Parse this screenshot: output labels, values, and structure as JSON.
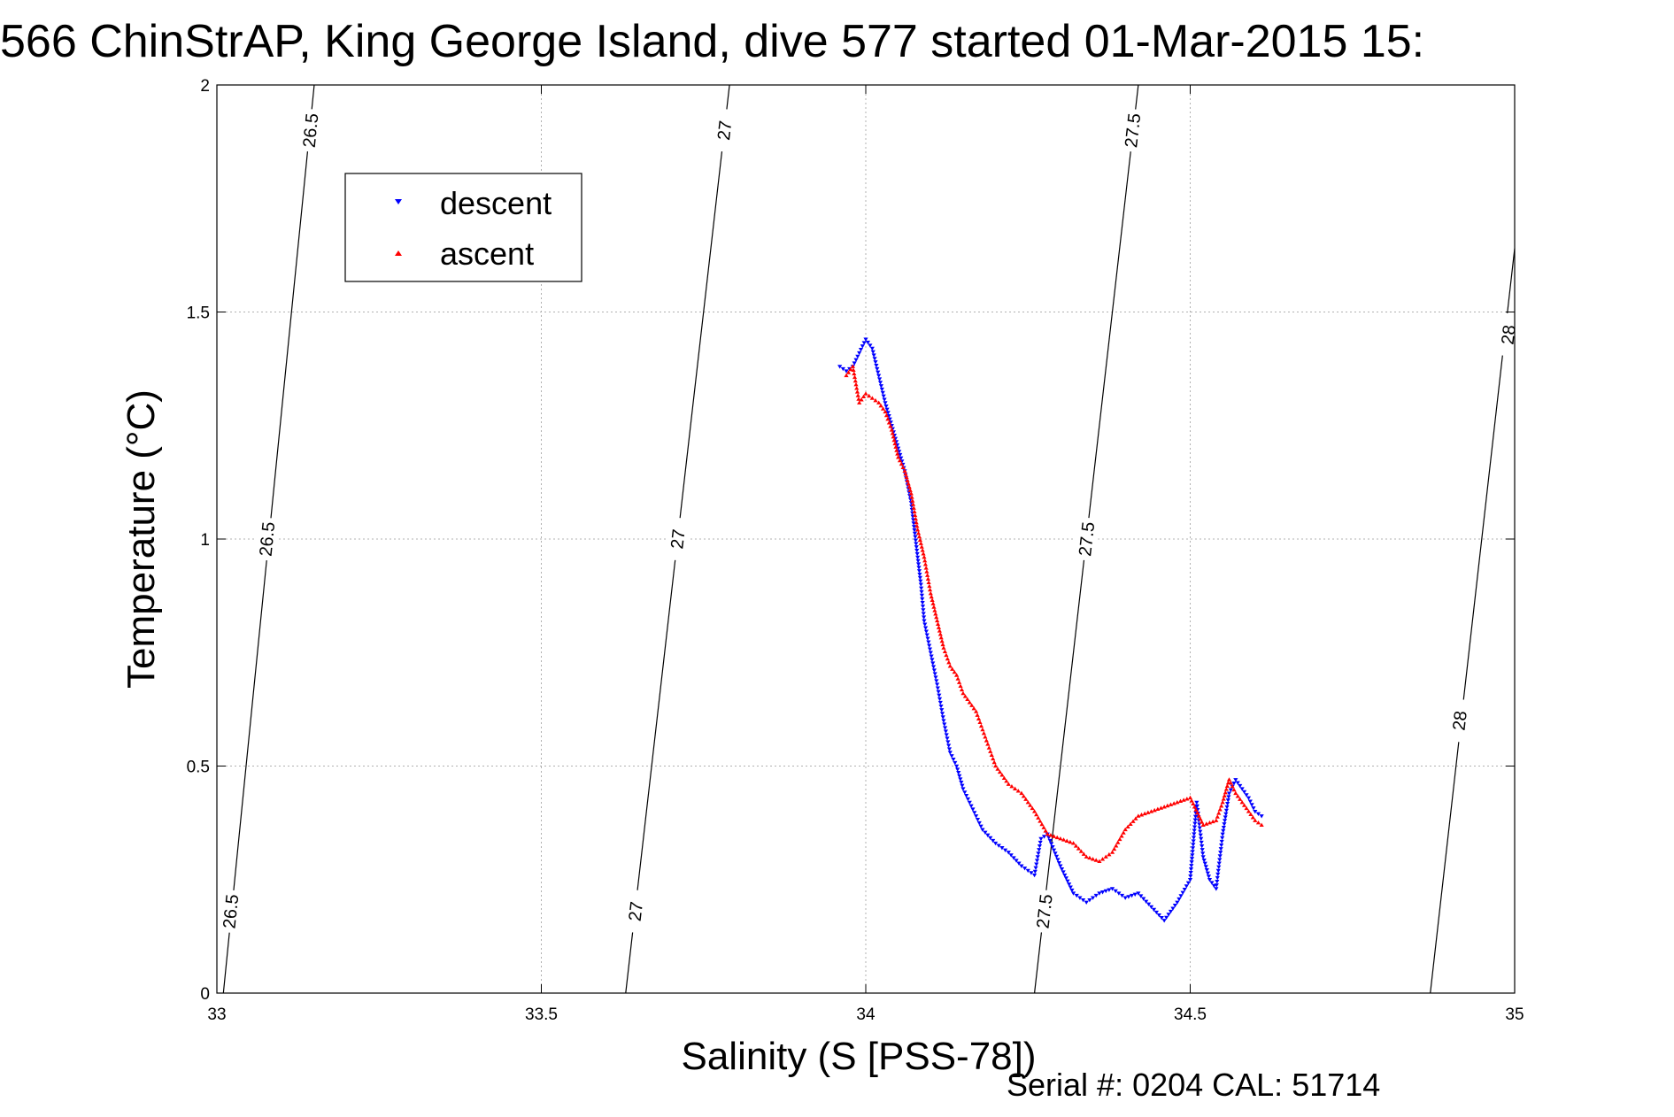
{
  "title": "566 ChinStrAP, King George Island, dive 577 started 01-Mar-2015 15:",
  "footer": "Serial #: 0204  CAL: 51714",
  "chart_data": {
    "type": "scatter",
    "xlabel": "Salinity (S [PSS-78])",
    "ylabel": "Temperature (°C)",
    "xlim": [
      33,
      35
    ],
    "ylim": [
      0,
      2
    ],
    "xticks": [
      "33",
      "33.5",
      "34",
      "34.5",
      "35"
    ],
    "yticks": [
      "0",
      "0.5",
      "1",
      "1.5",
      "2"
    ],
    "grid": true,
    "legend_position": "top-left",
    "density_contours": [
      {
        "label": "26.5",
        "points": [
          [
            33.01,
            0.0
          ],
          [
            33.15,
            2.0
          ]
        ],
        "label_positions": [
          [
            33.144,
            1.9
          ],
          [
            33.077,
            1.0
          ],
          [
            33.021,
            0.18
          ]
        ]
      },
      {
        "label": "27",
        "points": [
          [
            33.63,
            0.0
          ],
          [
            33.79,
            2.0
          ]
        ],
        "label_positions": [
          [
            33.782,
            1.9
          ],
          [
            33.71,
            1.0
          ],
          [
            33.645,
            0.18
          ]
        ]
      },
      {
        "label": "27.5",
        "points": [
          [
            34.26,
            0.0
          ],
          [
            34.42,
            2.0
          ]
        ],
        "label_positions": [
          [
            34.411,
            1.9
          ],
          [
            34.34,
            1.0
          ],
          [
            34.275,
            0.18
          ]
        ]
      },
      {
        "label": "28",
        "points": [
          [
            34.87,
            0.0
          ],
          [
            35.0,
            1.64
          ]
        ],
        "label_positions": [
          [
            34.99,
            1.45
          ],
          [
            34.915,
            0.6
          ]
        ]
      }
    ],
    "series": [
      {
        "name": "descent",
        "color": "#0000ff",
        "marker": "triangle-down",
        "x": [
          33.96,
          33.97,
          33.98,
          33.99,
          34.0,
          34.01,
          34.02,
          34.03,
          34.04,
          34.05,
          34.06,
          34.07,
          34.075,
          34.08,
          34.085,
          34.09,
          34.1,
          34.11,
          34.12,
          34.13,
          34.14,
          34.15,
          34.16,
          34.17,
          34.18,
          34.2,
          34.22,
          34.24,
          34.26,
          34.27,
          34.28,
          34.3,
          34.32,
          34.34,
          34.36,
          34.38,
          34.4,
          34.42,
          34.44,
          34.46,
          34.48,
          34.5,
          34.51,
          34.52,
          34.53,
          34.54,
          34.55,
          34.56,
          34.57,
          34.58,
          34.59,
          34.6,
          34.61
        ],
        "y": [
          1.38,
          1.37,
          1.38,
          1.41,
          1.44,
          1.42,
          1.36,
          1.3,
          1.25,
          1.2,
          1.15,
          1.08,
          1.02,
          0.96,
          0.9,
          0.82,
          0.75,
          0.68,
          0.6,
          0.53,
          0.5,
          0.45,
          0.42,
          0.39,
          0.36,
          0.33,
          0.31,
          0.28,
          0.26,
          0.34,
          0.35,
          0.28,
          0.22,
          0.2,
          0.22,
          0.23,
          0.21,
          0.22,
          0.19,
          0.16,
          0.2,
          0.25,
          0.42,
          0.3,
          0.25,
          0.23,
          0.35,
          0.44,
          0.47,
          0.45,
          0.43,
          0.4,
          0.39
        ]
      },
      {
        "name": "ascent",
        "color": "#ff0000",
        "marker": "triangle-up",
        "x": [
          33.97,
          33.98,
          33.99,
          34.0,
          34.01,
          34.02,
          34.03,
          34.04,
          34.05,
          34.06,
          34.07,
          34.08,
          34.09,
          34.1,
          34.11,
          34.12,
          34.13,
          34.14,
          34.15,
          34.16,
          34.17,
          34.18,
          34.19,
          34.2,
          34.22,
          34.24,
          34.26,
          34.28,
          34.3,
          34.32,
          34.34,
          34.36,
          34.38,
          34.4,
          34.42,
          34.44,
          34.46,
          34.48,
          34.5,
          34.52,
          34.54,
          34.55,
          34.56,
          34.57,
          34.58,
          34.59,
          34.6,
          34.61
        ],
        "y": [
          1.36,
          1.38,
          1.3,
          1.32,
          1.31,
          1.3,
          1.28,
          1.24,
          1.18,
          1.15,
          1.1,
          1.02,
          0.96,
          0.88,
          0.82,
          0.76,
          0.72,
          0.7,
          0.66,
          0.64,
          0.62,
          0.58,
          0.54,
          0.5,
          0.46,
          0.44,
          0.4,
          0.35,
          0.34,
          0.33,
          0.3,
          0.29,
          0.31,
          0.36,
          0.39,
          0.4,
          0.41,
          0.42,
          0.43,
          0.37,
          0.38,
          0.42,
          0.47,
          0.44,
          0.42,
          0.4,
          0.38,
          0.37
        ]
      }
    ]
  }
}
